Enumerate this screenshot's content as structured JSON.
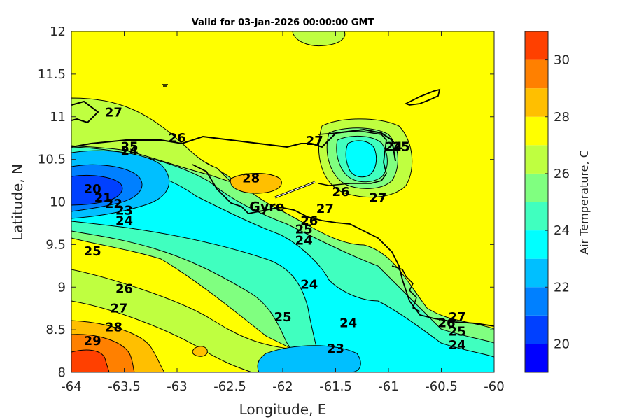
{
  "chart_data": {
    "type": "heatmap",
    "title": "Valid for 03-Jan-2026 00:00:00 GMT",
    "xlabel": "Longitude, E",
    "ylabel": "Latitude, N",
    "xlim": [
      -64,
      -60
    ],
    "ylim": [
      8,
      12
    ],
    "x_ticks": [
      -64,
      -63.5,
      -63,
      -62.5,
      -62,
      -61.5,
      -61,
      -60.5,
      -60
    ],
    "y_ticks": [
      8,
      8.5,
      9,
      9.5,
      10,
      10.5,
      11,
      11.5,
      12
    ],
    "colorbar": {
      "label": "Air Temperature, C",
      "range": [
        19,
        31
      ],
      "ticks": [
        20,
        22,
        24,
        26,
        28,
        30
      ],
      "levels": [
        19,
        20,
        21,
        22,
        23,
        24,
        25,
        26,
        27,
        28,
        29,
        30,
        31
      ],
      "colors": [
        "#0000ff",
        "#0040ff",
        "#0080ff",
        "#00bfff",
        "#00ffff",
        "#40ffbf",
        "#80ff80",
        "#bfff40",
        "#ffff00",
        "#ffbf00",
        "#ff8000",
        "#ff4000",
        "#ff0000"
      ]
    },
    "contour_labels": [
      {
        "text": "27",
        "lon": -63.6,
        "lat": 11.05
      },
      {
        "text": "26",
        "lon": -63.0,
        "lat": 10.75
      },
      {
        "text": "25",
        "lon": -63.45,
        "lat": 10.65
      },
      {
        "text": "24",
        "lon": -63.45,
        "lat": 10.6
      },
      {
        "text": "20",
        "lon": -63.8,
        "lat": 10.15
      },
      {
        "text": "21",
        "lon": -63.7,
        "lat": 10.05
      },
      {
        "text": "22",
        "lon": -63.6,
        "lat": 9.98
      },
      {
        "text": "23",
        "lon": -63.5,
        "lat": 9.9
      },
      {
        "text": "24",
        "lon": -63.5,
        "lat": 9.78
      },
      {
        "text": "25",
        "lon": -63.8,
        "lat": 9.42
      },
      {
        "text": "26",
        "lon": -63.5,
        "lat": 8.98
      },
      {
        "text": "27",
        "lon": -63.55,
        "lat": 8.75
      },
      {
        "text": "28",
        "lon": -63.6,
        "lat": 8.53
      },
      {
        "text": "29",
        "lon": -63.8,
        "lat": 8.37
      },
      {
        "text": "28",
        "lon": -62.3,
        "lat": 10.28
      },
      {
        "text": "27",
        "lon": -61.7,
        "lat": 10.72
      },
      {
        "text": "27",
        "lon": -61.6,
        "lat": 9.92
      },
      {
        "text": "26",
        "lon": -61.45,
        "lat": 10.12
      },
      {
        "text": "27",
        "lon": -61.1,
        "lat": 10.05
      },
      {
        "text": "24",
        "lon": -60.95,
        "lat": 10.65
      },
      {
        "text": "25",
        "lon": -60.88,
        "lat": 10.65
      },
      {
        "text": "26",
        "lon": -61.75,
        "lat": 9.78
      },
      {
        "text": "25",
        "lon": -61.8,
        "lat": 9.68
      },
      {
        "text": "24",
        "lon": -61.8,
        "lat": 9.55
      },
      {
        "text": "24",
        "lon": -61.75,
        "lat": 9.03
      },
      {
        "text": "25",
        "lon": -62.0,
        "lat": 8.65
      },
      {
        "text": "24",
        "lon": -61.38,
        "lat": 8.58
      },
      {
        "text": "23",
        "lon": -61.5,
        "lat": 8.28
      },
      {
        "text": "27",
        "lon": -60.35,
        "lat": 8.65
      },
      {
        "text": "26",
        "lon": -60.45,
        "lat": 8.58
      },
      {
        "text": "25",
        "lon": -60.35,
        "lat": 8.48
      },
      {
        "text": "24",
        "lon": -60.35,
        "lat": 8.32
      }
    ],
    "place_label": {
      "text": "Gyre",
      "lon": -62.15,
      "lat": 9.95
    }
  }
}
